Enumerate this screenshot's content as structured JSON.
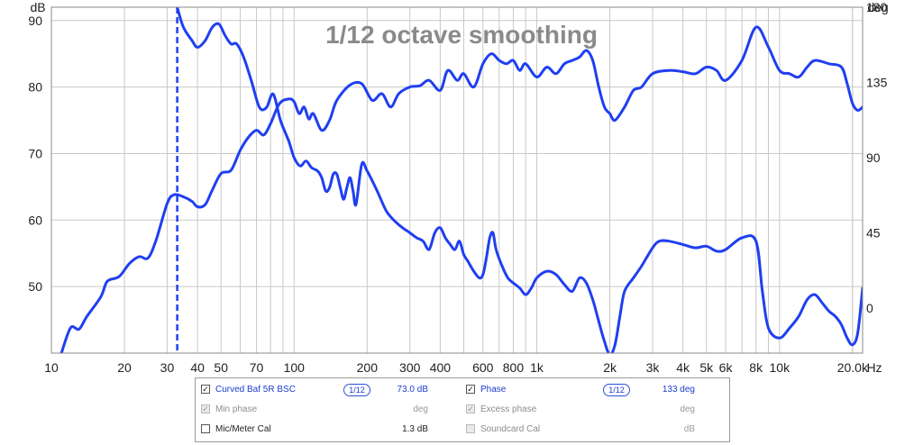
{
  "chart_data": {
    "type": "line",
    "title": "1/12 octave smoothing",
    "x_scale": "log",
    "xlim": [
      10,
      22000
    ],
    "ylim_left": [
      40,
      92
    ],
    "ylim_right": [
      -27,
      180
    ],
    "ylabel_left": "dB",
    "ylabel_right": "deg",
    "xunit": "Hz",
    "x_ticks": [
      {
        "v": 10,
        "label": "10"
      },
      {
        "v": 20,
        "label": "20"
      },
      {
        "v": 30,
        "label": "30"
      },
      {
        "v": 40,
        "label": "40"
      },
      {
        "v": 50,
        "label": "50"
      },
      {
        "v": 70,
        "label": "70"
      },
      {
        "v": 100,
        "label": "100"
      },
      {
        "v": 200,
        "label": "200"
      },
      {
        "v": 300,
        "label": "300"
      },
      {
        "v": 400,
        "label": "400"
      },
      {
        "v": 600,
        "label": "600"
      },
      {
        "v": 800,
        "label": "800"
      },
      {
        "v": 1000,
        "label": "1k"
      },
      {
        "v": 2000,
        "label": "2k"
      },
      {
        "v": 3000,
        "label": "3k"
      },
      {
        "v": 4000,
        "label": "4k"
      },
      {
        "v": 5000,
        "label": "5k"
      },
      {
        "v": 6000,
        "label": "6k"
      },
      {
        "v": 8000,
        "label": "8k"
      },
      {
        "v": 10000,
        "label": "10k"
      },
      {
        "v": 20000,
        "label": "20.0k"
      }
    ],
    "y_ticks_left": [
      {
        "v": 50,
        "label": "50"
      },
      {
        "v": 60,
        "label": "60"
      },
      {
        "v": 70,
        "label": "70"
      },
      {
        "v": 80,
        "label": "80"
      },
      {
        "v": 90,
        "label": "90"
      }
    ],
    "y_ticks_right": [
      {
        "v": 0,
        "label": "0"
      },
      {
        "v": 45,
        "label": "45"
      },
      {
        "v": 90,
        "label": "90"
      },
      {
        "v": 135,
        "label": "135"
      },
      {
        "v": 180,
        "label": "180"
      }
    ],
    "grid": true,
    "color": "#1f3ff0",
    "series": [
      {
        "name": "Curved Baf 5R BSC",
        "axis": "left",
        "points": [
          [
            11,
            40
          ],
          [
            12,
            43.8
          ],
          [
            13,
            43.6
          ],
          [
            14,
            45.5
          ],
          [
            16,
            48.5
          ],
          [
            17,
            50.8
          ],
          [
            19,
            51.5
          ],
          [
            21,
            53.5
          ],
          [
            23,
            54.5
          ],
          [
            25,
            54.3
          ],
          [
            27,
            57
          ],
          [
            30,
            62.5
          ],
          [
            32,
            63.8
          ],
          [
            35,
            63.5
          ],
          [
            38,
            62.8
          ],
          [
            40,
            62
          ],
          [
            43,
            62.3
          ],
          [
            46,
            64.5
          ],
          [
            50,
            67
          ],
          [
            55,
            67.5
          ],
          [
            60,
            70.5
          ],
          [
            65,
            72.5
          ],
          [
            70,
            73.5
          ],
          [
            75,
            72.8
          ],
          [
            80,
            74.5
          ],
          [
            87,
            77.5
          ],
          [
            95,
            78.2
          ],
          [
            100,
            77.8
          ],
          [
            105,
            76
          ],
          [
            110,
            77
          ],
          [
            115,
            75.2
          ],
          [
            120,
            76
          ],
          [
            130,
            73.5
          ],
          [
            140,
            75
          ],
          [
            150,
            78
          ],
          [
            170,
            80.3
          ],
          [
            190,
            80.5
          ],
          [
            210,
            78
          ],
          [
            230,
            79
          ],
          [
            250,
            77
          ],
          [
            270,
            79
          ],
          [
            300,
            80
          ],
          [
            330,
            80.2
          ],
          [
            360,
            81
          ],
          [
            400,
            79.5
          ],
          [
            430,
            82.5
          ],
          [
            470,
            81
          ],
          [
            500,
            82
          ],
          [
            550,
            80
          ],
          [
            600,
            83.5
          ],
          [
            650,
            85
          ],
          [
            700,
            84
          ],
          [
            750,
            83.5
          ],
          [
            800,
            84
          ],
          [
            850,
            82.5
          ],
          [
            900,
            83.5
          ],
          [
            1000,
            81.5
          ],
          [
            1100,
            83
          ],
          [
            1200,
            82
          ],
          [
            1300,
            83.5
          ],
          [
            1400,
            84
          ],
          [
            1500,
            84.5
          ],
          [
            1600,
            85.5
          ],
          [
            1700,
            84
          ],
          [
            1800,
            80
          ],
          [
            1900,
            77
          ],
          [
            2000,
            76
          ],
          [
            2100,
            75
          ],
          [
            2300,
            77
          ],
          [
            2500,
            79.5
          ],
          [
            2700,
            80
          ],
          [
            3000,
            82
          ],
          [
            3500,
            82.5
          ],
          [
            4000,
            82.3
          ],
          [
            4500,
            82
          ],
          [
            5000,
            83
          ],
          [
            5500,
            82.5
          ],
          [
            6000,
            81
          ],
          [
            7000,
            84
          ],
          [
            8000,
            89
          ],
          [
            9000,
            86
          ],
          [
            10000,
            82.5
          ],
          [
            11000,
            82
          ],
          [
            12000,
            81.5
          ],
          [
            13000,
            83
          ],
          [
            14000,
            84
          ],
          [
            16000,
            83.5
          ],
          [
            18000,
            83
          ],
          [
            19000,
            80.5
          ],
          [
            20000,
            77.5
          ],
          [
            21000,
            76.5
          ],
          [
            22000,
            77
          ]
        ]
      },
      {
        "name": "Phase",
        "axis": "right",
        "points": [
          [
            33,
            180
          ],
          [
            35,
            168
          ],
          [
            38,
            160
          ],
          [
            40,
            156
          ],
          [
            43,
            160
          ],
          [
            46,
            168
          ],
          [
            49,
            170
          ],
          [
            52,
            163
          ],
          [
            55,
            158
          ],
          [
            58,
            158
          ],
          [
            62,
            150
          ],
          [
            67,
            135
          ],
          [
            72,
            120
          ],
          [
            77,
            120
          ],
          [
            82,
            128
          ],
          [
            88,
            112
          ],
          [
            95,
            100
          ],
          [
            100,
            90
          ],
          [
            106,
            85
          ],
          [
            112,
            88
          ],
          [
            118,
            84
          ],
          [
            125,
            82
          ],
          [
            130,
            78
          ],
          [
            135,
            70
          ],
          [
            140,
            72
          ],
          [
            145,
            80
          ],
          [
            150,
            80
          ],
          [
            155,
            72
          ],
          [
            160,
            65
          ],
          [
            165,
            72
          ],
          [
            170,
            78
          ],
          [
            175,
            70
          ],
          [
            180,
            62
          ],
          [
            190,
            86
          ],
          [
            200,
            82
          ],
          [
            220,
            70
          ],
          [
            240,
            58
          ],
          [
            260,
            52
          ],
          [
            280,
            48
          ],
          [
            300,
            45
          ],
          [
            320,
            42
          ],
          [
            340,
            40
          ],
          [
            360,
            35
          ],
          [
            380,
            45
          ],
          [
            400,
            48
          ],
          [
            420,
            42
          ],
          [
            440,
            38
          ],
          [
            460,
            35
          ],
          [
            480,
            40
          ],
          [
            500,
            32
          ],
          [
            520,
            28
          ],
          [
            550,
            22
          ],
          [
            580,
            18
          ],
          [
            600,
            20
          ],
          [
            620,
            30
          ],
          [
            640,
            42
          ],
          [
            660,
            45
          ],
          [
            680,
            35
          ],
          [
            720,
            25
          ],
          [
            760,
            18
          ],
          [
            800,
            15
          ],
          [
            850,
            12
          ],
          [
            900,
            8
          ],
          [
            950,
            12
          ],
          [
            1000,
            18
          ],
          [
            1100,
            22
          ],
          [
            1200,
            20
          ],
          [
            1300,
            14
          ],
          [
            1400,
            10
          ],
          [
            1500,
            18
          ],
          [
            1600,
            15
          ],
          [
            1700,
            5
          ],
          [
            1800,
            -8
          ],
          [
            1900,
            -20
          ],
          [
            2000,
            -28
          ],
          [
            2100,
            -22
          ],
          [
            2200,
            -5
          ],
          [
            2300,
            10
          ],
          [
            2500,
            18
          ],
          [
            2700,
            25
          ],
          [
            3000,
            36
          ],
          [
            3200,
            40
          ],
          [
            3500,
            40
          ],
          [
            4000,
            38
          ],
          [
            4500,
            36
          ],
          [
            5000,
            37
          ],
          [
            5500,
            34
          ],
          [
            6000,
            35
          ],
          [
            7000,
            42
          ],
          [
            8000,
            40
          ],
          [
            8500,
            10
          ],
          [
            9000,
            -12
          ],
          [
            10000,
            -18
          ],
          [
            11000,
            -12
          ],
          [
            12000,
            -5
          ],
          [
            13000,
            5
          ],
          [
            14000,
            8
          ],
          [
            15000,
            3
          ],
          [
            16000,
            -2
          ],
          [
            17000,
            -5
          ],
          [
            18000,
            -10
          ],
          [
            19000,
            -18
          ],
          [
            20000,
            -22
          ],
          [
            21000,
            -15
          ],
          [
            22000,
            12
          ]
        ]
      }
    ],
    "marker_x": 33
  },
  "legend": {
    "rows": [
      {
        "left": {
          "checked": true,
          "enabled": true,
          "label": "Curved Baf 5R BSC",
          "smoothing": "1/12",
          "value": "73.0 dB"
        },
        "right": {
          "checked": true,
          "enabled": true,
          "label": "Phase",
          "smoothing": "1/12",
          "value": "133 deg"
        }
      },
      {
        "left": {
          "checked": true,
          "enabled": false,
          "label": "Min phase",
          "value": "deg"
        },
        "right": {
          "checked": true,
          "enabled": false,
          "label": "Excess phase",
          "value": "deg"
        }
      },
      {
        "left": {
          "checked": false,
          "enabled": true,
          "label": "Mic/Meter Cal",
          "value": "1.3 dB"
        },
        "right": {
          "checked": false,
          "enabled": false,
          "label": "Soundcard Cal",
          "value": "dB"
        }
      }
    ]
  }
}
